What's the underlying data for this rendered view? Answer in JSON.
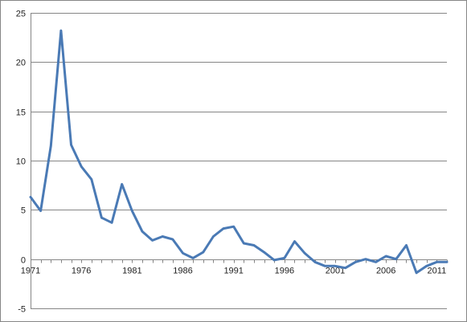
{
  "chart_data": {
    "type": "line",
    "title": "",
    "xlabel": "",
    "ylabel": "",
    "ylim": [
      -5,
      25
    ],
    "xlim": [
      1971,
      2012
    ],
    "grid": true,
    "legend": "none",
    "y_ticks": [
      25,
      20,
      15,
      10,
      5,
      0,
      -5
    ],
    "x_ticks": [
      1971,
      1976,
      1981,
      1986,
      1991,
      1996,
      2001,
      2006,
      2011
    ],
    "series": [
      {
        "color": "#4a7ab5",
        "x": [
          1971,
          1972,
          1973,
          1974,
          1975,
          1976,
          1977,
          1978,
          1979,
          1980,
          1981,
          1982,
          1983,
          1984,
          1985,
          1986,
          1987,
          1988,
          1989,
          1990,
          1991,
          1992,
          1993,
          1994,
          1995,
          1996,
          1997,
          1998,
          1999,
          2000,
          2001,
          2002,
          2003,
          2004,
          2005,
          2006,
          2007,
          2008,
          2009,
          2010,
          2011,
          2012
        ],
        "values": [
          6.3,
          4.9,
          11.5,
          23.2,
          11.6,
          9.4,
          8.1,
          4.2,
          3.7,
          7.6,
          4.9,
          2.8,
          1.9,
          2.3,
          2.0,
          0.6,
          0.1,
          0.7,
          2.3,
          3.1,
          3.3,
          1.6,
          1.4,
          0.7,
          -0.1,
          0.1,
          1.8,
          0.6,
          -0.3,
          -0.7,
          -0.7,
          -0.9,
          -0.3,
          0.0,
          -0.3,
          0.3,
          0.0,
          1.4,
          -1.4,
          -0.7,
          -0.3,
          -0.3
        ]
      }
    ]
  }
}
